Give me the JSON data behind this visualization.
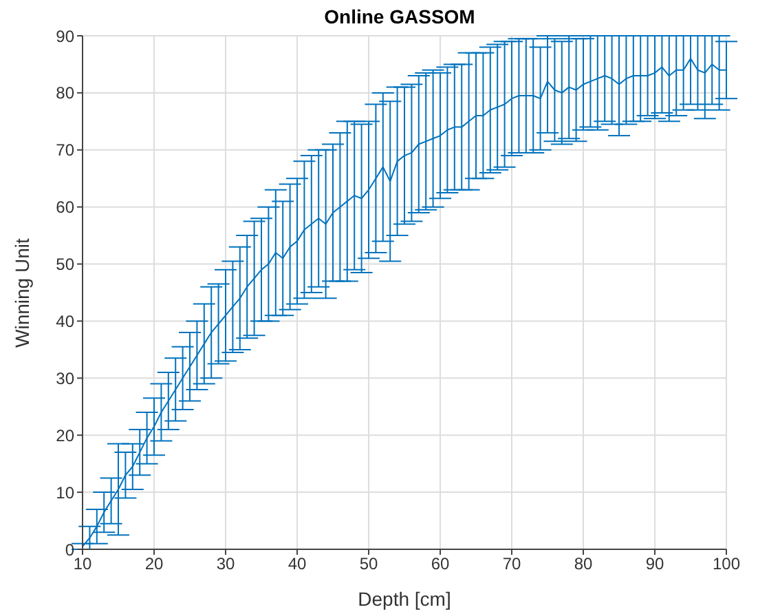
{
  "chart_data": {
    "type": "line",
    "title": "Online GASSOM",
    "xlabel": "Depth [cm]",
    "ylabel": "Winning Unit",
    "x": [
      10,
      11,
      12,
      13,
      14,
      15,
      16,
      17,
      18,
      19,
      20,
      21,
      22,
      23,
      24,
      25,
      26,
      27,
      28,
      29,
      30,
      31,
      32,
      33,
      34,
      35,
      36,
      37,
      38,
      39,
      40,
      41,
      42,
      43,
      44,
      45,
      46,
      47,
      48,
      49,
      50,
      51,
      52,
      53,
      54,
      55,
      56,
      57,
      58,
      59,
      60,
      61,
      62,
      63,
      64,
      65,
      66,
      67,
      68,
      69,
      70,
      71,
      72,
      73,
      74,
      75,
      76,
      77,
      78,
      79,
      80,
      81,
      82,
      83,
      84,
      85,
      86,
      87,
      88,
      89,
      90,
      91,
      92,
      93,
      94,
      95,
      96,
      97,
      98,
      99,
      100
    ],
    "series": [
      {
        "color": "#0072bd",
        "values": [
          0.5,
          2,
          4,
          6.5,
          8.5,
          10.5,
          13,
          14.5,
          17,
          19.5,
          21.5,
          24,
          26,
          28,
          30,
          32,
          34,
          36,
          38,
          39.5,
          41,
          42.5,
          44,
          46,
          47.5,
          49,
          50,
          52,
          51,
          53,
          54,
          56,
          57,
          58,
          57,
          59,
          60,
          61,
          62,
          61.5,
          63,
          65,
          67,
          64.5,
          68,
          69,
          69.5,
          71,
          71.5,
          72,
          72.5,
          73.5,
          74,
          74,
          75,
          76,
          76,
          77,
          77.5,
          78,
          79,
          79.5,
          79.5,
          79.5,
          79,
          82,
          80.5,
          80,
          81,
          80.5,
          81.5,
          82,
          82.5,
          83,
          82.5,
          81.5,
          82.5,
          83,
          83,
          83,
          83.5,
          84.5,
          83,
          84,
          84,
          86,
          84,
          83.5,
          85,
          84,
          84
        ],
        "errors": [
          0.5,
          2,
          3,
          3.5,
          4,
          8,
          4,
          4,
          4,
          4.5,
          5,
          5,
          5,
          5.5,
          5.5,
          6,
          6,
          7,
          8,
          7,
          8,
          8,
          9,
          9,
          10,
          9,
          10,
          11,
          10,
          11,
          11,
          12,
          12,
          12,
          13,
          12,
          13,
          14,
          13,
          13,
          12,
          13,
          13,
          14,
          13,
          12,
          12,
          12,
          12,
          12,
          11,
          11,
          11,
          11,
          12,
          11,
          11,
          11,
          11,
          11,
          10,
          10,
          10,
          10,
          9,
          [
            73,
            90
          ],
          9,
          9,
          9,
          9,
          8,
          8,
          [
            73.5,
            90
          ],
          [
            75,
            90
          ],
          [
            74.5,
            90
          ],
          [
            72.5,
            90
          ],
          [
            74.5,
            90
          ],
          [
            75,
            90
          ],
          [
            75,
            90
          ],
          7,
          [
            75.5,
            90
          ],
          [
            76.5,
            90
          ],
          [
            75,
            90
          ],
          [
            76,
            90
          ],
          [
            77,
            90
          ],
          [
            78,
            90
          ],
          [
            77,
            90
          ],
          [
            75.5,
            90
          ],
          [
            78,
            90
          ],
          [
            77,
            90
          ],
          5
        ]
      }
    ],
    "xlim": [
      10,
      100
    ],
    "xticks": [
      10,
      20,
      30,
      40,
      50,
      60,
      70,
      80,
      90,
      100
    ],
    "ylim": [
      0,
      90
    ],
    "yticks": [
      0,
      10,
      20,
      30,
      40,
      50,
      60,
      70,
      80,
      90
    ],
    "grid": true,
    "legend": false,
    "marker": "none",
    "line_style": "solid"
  }
}
